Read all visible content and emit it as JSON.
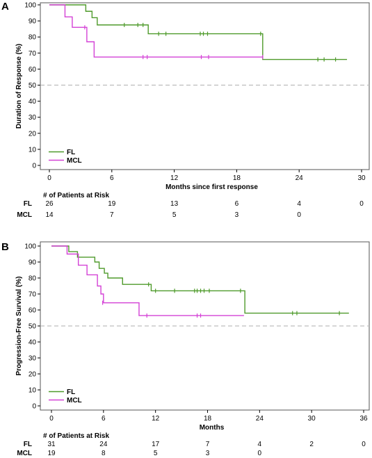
{
  "colors": {
    "FL": "#4e9a2a",
    "MCL": "#d442d6",
    "reference": "#bdbdbd",
    "frame": "#000000"
  },
  "chart_data": [
    {
      "panel": "A",
      "type": "line",
      "step": true,
      "ylabel": "Duration of Response (%)",
      "xlabel": "Months since first response",
      "xlim": [
        0,
        30
      ],
      "ylim": [
        0,
        100
      ],
      "xticks": [
        0,
        6,
        12,
        18,
        24,
        30
      ],
      "yticks": [
        0,
        10,
        20,
        30,
        40,
        50,
        60,
        70,
        80,
        90,
        100
      ],
      "reference_line": 50,
      "legend_position": "bottom-left",
      "series": [
        {
          "name": "FL",
          "steps": [
            [
              0,
              100
            ],
            [
              3.5,
              96
            ],
            [
              4.1,
              92
            ],
            [
              4.6,
              87.5
            ],
            [
              9.5,
              82
            ],
            [
              20.5,
              66
            ],
            [
              28.6,
              66
            ]
          ],
          "censored": [
            [
              7.2,
              87.5
            ],
            [
              8.5,
              87.5
            ],
            [
              9.0,
              87.5
            ],
            [
              10.5,
              82
            ],
            [
              11.2,
              82
            ],
            [
              14.5,
              82
            ],
            [
              14.8,
              82
            ],
            [
              15.2,
              82
            ],
            [
              20.3,
              82
            ],
            [
              25.8,
              66
            ],
            [
              26.4,
              66
            ],
            [
              27.5,
              66
            ]
          ]
        },
        {
          "name": "MCL",
          "steps": [
            [
              0,
              100
            ],
            [
              1.5,
              92.5
            ],
            [
              2.2,
              86
            ],
            [
              3.6,
              77
            ],
            [
              4.3,
              67.5
            ],
            [
              20.5,
              67.5
            ]
          ],
          "censored": [
            [
              3.4,
              86
            ],
            [
              9.0,
              67.5
            ],
            [
              9.4,
              67.5
            ],
            [
              14.6,
              67.5
            ],
            [
              15.3,
              67.5
            ],
            [
              20.5,
              67.5
            ]
          ]
        }
      ],
      "risk_table": {
        "title": "# of Patients at Risk",
        "times": [
          0,
          6,
          12,
          18,
          24,
          30
        ],
        "rows": [
          {
            "label": "FL",
            "values": [
              "26",
              "19",
              "13",
              "6",
              "4",
              "0"
            ]
          },
          {
            "label": "MCL",
            "values": [
              "14",
              "7",
              "5",
              "3",
              "0",
              ""
            ]
          }
        ]
      }
    },
    {
      "panel": "B",
      "type": "line",
      "step": true,
      "ylabel": "Progression-Free Survival (%)",
      "xlabel": "Months",
      "xlim": [
        0,
        36
      ],
      "ylim": [
        0,
        100
      ],
      "xticks": [
        0,
        6,
        12,
        18,
        24,
        30,
        36
      ],
      "yticks": [
        0,
        10,
        20,
        30,
        40,
        50,
        60,
        70,
        80,
        90,
        100
      ],
      "reference_line": 50,
      "legend_position": "bottom-left",
      "series": [
        {
          "name": "FL",
          "steps": [
            [
              0,
              100
            ],
            [
              2,
              96.5
            ],
            [
              3,
              93
            ],
            [
              5,
              90
            ],
            [
              5.5,
              86
            ],
            [
              6.1,
              83
            ],
            [
              6.5,
              80
            ],
            [
              8.2,
              76
            ],
            [
              11.5,
              72
            ],
            [
              22.3,
              58
            ],
            [
              34.3,
              58
            ]
          ],
          "censored": [
            [
              11.2,
              76
            ],
            [
              12.0,
              72
            ],
            [
              14.2,
              72
            ],
            [
              16.5,
              72
            ],
            [
              16.8,
              72
            ],
            [
              17.2,
              72
            ],
            [
              17.6,
              72
            ],
            [
              18.2,
              72
            ],
            [
              21.8,
              72
            ],
            [
              27.8,
              58
            ],
            [
              28.3,
              58
            ],
            [
              33.2,
              58
            ]
          ]
        },
        {
          "name": "MCL",
          "steps": [
            [
              0,
              100
            ],
            [
              1.8,
              95
            ],
            [
              3.1,
              88
            ],
            [
              4.1,
              82
            ],
            [
              5.3,
              75
            ],
            [
              5.7,
              70
            ],
            [
              6.0,
              64.5
            ],
            [
              10.1,
              56.5
            ],
            [
              22.2,
              56.5
            ]
          ],
          "censored": [
            [
              5.9,
              64.5
            ],
            [
              11.0,
              56.5
            ],
            [
              16.8,
              56.5
            ],
            [
              17.2,
              56.5
            ]
          ]
        }
      ],
      "risk_table": {
        "title": "# of Patients at Risk",
        "times": [
          0,
          6,
          12,
          18,
          24,
          30,
          36
        ],
        "rows": [
          {
            "label": "FL",
            "values": [
              "31",
              "24",
              "17",
              "7",
              "4",
              "2",
              "0"
            ]
          },
          {
            "label": "MCL",
            "values": [
              "19",
              "8",
              "5",
              "3",
              "0",
              "",
              ""
            ]
          }
        ]
      }
    }
  ]
}
